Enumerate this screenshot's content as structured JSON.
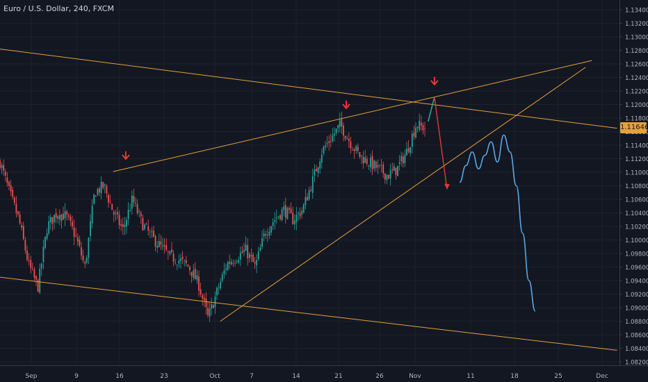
{
  "symbol_title": "Euro / U.S. Dollar, 240, FXCM",
  "price_tag": "1.11646",
  "colors": {
    "background": "#131722",
    "up": "#26a69a",
    "down": "#ef5350",
    "trendline": "#e8a03a",
    "projection_blue": "#5aa8e6",
    "projection_green": "#26a69a",
    "projection_red": "#e53935",
    "axis_text": "#b2b5be"
  },
  "chart_data": {
    "type": "candlestick",
    "title": "Euro / U.S. Dollar, 240, FXCM",
    "ylim": [
      1.0811,
      1.1349
    ],
    "y_ticks": [
      "1.13400",
      "1.13200",
      "1.13000",
      "1.12800",
      "1.12600",
      "1.12400",
      "1.12200",
      "1.12000",
      "1.11800",
      "1.11600",
      "1.11400",
      "1.11200",
      "1.11000",
      "1.10800",
      "1.10600",
      "1.10400",
      "1.10200",
      "1.10000",
      "1.09800",
      "1.09600",
      "1.09400",
      "1.09200",
      "1.09000",
      "1.08800",
      "1.08600",
      "1.08400",
      "1.08200"
    ],
    "x_ticks": [
      "Sep",
      "9",
      "16",
      "23",
      "Oct",
      "7",
      "14",
      "21",
      "26",
      "Nov",
      "11",
      "18",
      "25",
      "Dec"
    ],
    "last_price": 1.11646,
    "price_path_anchors": [
      [
        "Sep",
        1.1115
      ],
      [
        "2",
        1.107
      ],
      [
        "3",
        1.103
      ],
      [
        "4",
        1.0965
      ],
      [
        "5",
        1.093
      ],
      [
        "6",
        1.102
      ],
      [
        "9",
        1.104
      ],
      [
        "10",
        1.1035
      ],
      [
        "11",
        1.1005
      ],
      [
        "12",
        1.096
      ],
      [
        "13",
        1.107
      ],
      [
        "16",
        1.108
      ],
      [
        "17",
        1.104
      ],
      [
        "18",
        1.1015
      ],
      [
        "19",
        1.106
      ],
      [
        "20",
        1.1025
      ],
      [
        "23",
        1.1005
      ],
      [
        "24",
        1.099
      ],
      [
        "25",
        1.0975
      ],
      [
        "26",
        1.097
      ],
      [
        "27",
        1.096
      ],
      [
        "30",
        1.0935
      ],
      [
        "Oct",
        1.0885
      ],
      [
        "2",
        1.0925
      ],
      [
        "3",
        1.0965
      ],
      [
        "4",
        1.0975
      ],
      [
        "7",
        1.0985
      ],
      [
        "8",
        1.096
      ],
      [
        "9",
        1.101
      ],
      [
        "10",
        1.103
      ],
      [
        "11",
        1.1045
      ],
      [
        "14",
        1.103
      ],
      [
        "15",
        1.1045
      ],
      [
        "16",
        1.1085
      ],
      [
        "17",
        1.113
      ],
      [
        "18",
        1.115
      ],
      [
        "21",
        1.117
      ],
      [
        "22",
        1.1145
      ],
      [
        "23",
        1.1125
      ],
      [
        "24",
        1.1115
      ],
      [
        "25",
        1.1105
      ],
      [
        "28",
        1.1095
      ],
      [
        "29",
        1.1105
      ],
      [
        "30",
        1.113
      ],
      [
        "31",
        1.117
      ],
      [
        "Nov",
        1.1165
      ]
    ],
    "trendlines": [
      {
        "from": [
          "Aug 27",
          1.1282
        ],
        "to": [
          "Dec 3",
          1.1165
        ]
      },
      {
        "from": [
          "Aug 27",
          1.0945
        ],
        "to": [
          "Dec 3",
          1.0837
        ]
      },
      {
        "from": [
          "Sep 14",
          1.1101
        ],
        "to": [
          "Nov 29",
          1.1265
        ]
      },
      {
        "from": [
          "Oct 1",
          1.088
        ],
        "to": [
          "Nov 28",
          1.1255
        ]
      }
    ],
    "annotations": [
      {
        "type": "down-arrow",
        "at": [
          "Sep 16",
          1.1125
        ]
      },
      {
        "type": "down-arrow",
        "at": [
          "Oct 21",
          1.12
        ]
      },
      {
        "type": "down-arrow",
        "at": [
          "Nov 4",
          1.1235
        ]
      }
    ],
    "projection": {
      "green": [
        [
          "Nov 3",
          1.1175
        ],
        [
          "Nov 4",
          1.1211
        ]
      ],
      "red": [
        [
          "Nov 4",
          1.1211
        ],
        [
          "Nov 6",
          1.1075
        ]
      ],
      "blue": [
        [
          "Nov 8",
          1.1085
        ],
        [
          "Nov 9",
          1.111
        ],
        [
          "Nov 10",
          1.113
        ],
        [
          "Nov 11",
          1.1105
        ],
        [
          "Nov 12",
          1.1125
        ],
        [
          "Nov 13",
          1.1145
        ],
        [
          "Nov 14",
          1.1115
        ],
        [
          "Nov 15",
          1.1155
        ],
        [
          "Nov 16",
          1.113
        ],
        [
          "Nov 17",
          1.108
        ],
        [
          "Nov 18",
          1.101
        ],
        [
          "Nov 19",
          1.094
        ],
        [
          "Nov 20",
          1.0895
        ]
      ]
    }
  }
}
